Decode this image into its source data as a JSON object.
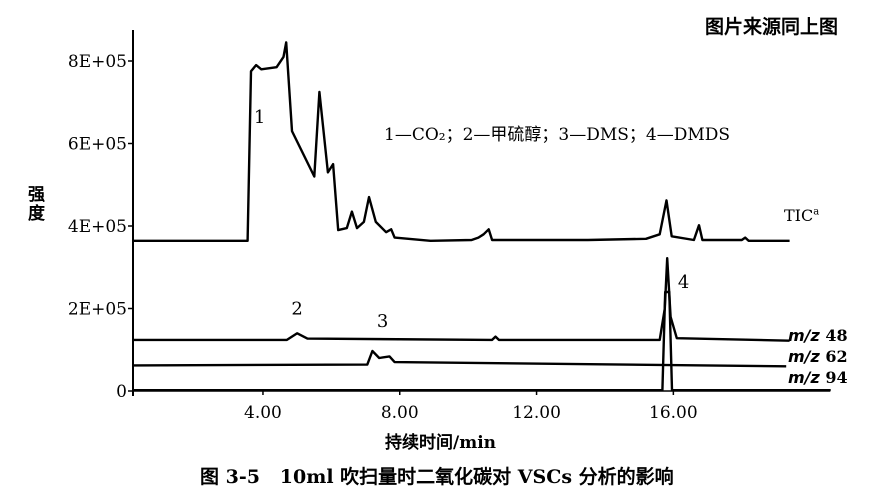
{
  "source_note": "图片来源同上图",
  "caption": "图 3-5   10ml 吹扫量时二氧化碳对 VSCs 分析的影响",
  "chart_data": {
    "type": "line",
    "title": "",
    "xlabel": "持续时间/min",
    "ylabel": "强度",
    "xlim": [
      0.2,
      20.6
    ],
    "ylim": [
      0,
      880000
    ],
    "x_ticks": [
      4,
      8,
      12,
      16
    ],
    "x_tick_labels": [
      "4.00",
      "8.00",
      "12.00",
      "16.00"
    ],
    "y_ticks": [
      0,
      200000,
      400000,
      600000,
      800000
    ],
    "y_tick_labels": [
      "0",
      "2E+05",
      "4E+05",
      "6E+05",
      "8E+05"
    ],
    "grid": false,
    "legend_text": "1—CO₂；2—甲硫醇；3—DMS；4—DMDS",
    "series": [
      {
        "name": "TIC",
        "superscript": "a",
        "points": [
          [
            0.2,
            364000
          ],
          [
            3.55,
            364000
          ],
          [
            3.65,
            775000
          ],
          [
            3.8,
            790000
          ],
          [
            3.95,
            780000
          ],
          [
            4.4,
            785000
          ],
          [
            4.6,
            810000
          ],
          [
            4.68,
            845000
          ],
          [
            4.85,
            630000
          ],
          [
            5.5,
            520000
          ],
          [
            5.65,
            725000
          ],
          [
            5.9,
            530000
          ],
          [
            6.05,
            550000
          ],
          [
            6.2,
            390000
          ],
          [
            6.45,
            395000
          ],
          [
            6.6,
            435000
          ],
          [
            6.75,
            395000
          ],
          [
            6.95,
            410000
          ],
          [
            7.1,
            470000
          ],
          [
            7.3,
            410000
          ],
          [
            7.6,
            385000
          ],
          [
            7.75,
            392000
          ],
          [
            7.85,
            372000
          ],
          [
            8.9,
            364000
          ],
          [
            10.1,
            366000
          ],
          [
            10.3,
            372000
          ],
          [
            10.45,
            380000
          ],
          [
            10.6,
            392000
          ],
          [
            10.7,
            366000
          ],
          [
            13.5,
            366000
          ],
          [
            15.2,
            369000
          ],
          [
            15.6,
            380000
          ],
          [
            15.8,
            462000
          ],
          [
            15.95,
            375000
          ],
          [
            16.6,
            366000
          ],
          [
            16.75,
            402000
          ],
          [
            16.85,
            366000
          ],
          [
            18.0,
            366000
          ],
          [
            18.1,
            372000
          ],
          [
            18.2,
            364000
          ],
          [
            19.4,
            364000
          ]
        ]
      },
      {
        "name": "m/z 48",
        "points": [
          [
            0.2,
            124000
          ],
          [
            4.7,
            124000
          ],
          [
            5.0,
            140000
          ],
          [
            5.3,
            127000
          ],
          [
            10.7,
            124000
          ],
          [
            10.8,
            132000
          ],
          [
            10.9,
            124000
          ],
          [
            15.6,
            124000
          ],
          [
            15.75,
            200000
          ],
          [
            15.82,
            322000
          ],
          [
            15.92,
            180000
          ],
          [
            16.1,
            128000
          ],
          [
            19.4,
            122000
          ]
        ]
      },
      {
        "name": "m/z 62",
        "points": [
          [
            0.2,
            62000
          ],
          [
            7.05,
            64000
          ],
          [
            7.2,
            97000
          ],
          [
            7.4,
            80000
          ],
          [
            7.7,
            84000
          ],
          [
            7.85,
            70000
          ],
          [
            19.3,
            60000
          ]
        ]
      },
      {
        "name": "m/z 94",
        "points": [
          [
            0.2,
            2000
          ],
          [
            15.68,
            2000
          ],
          [
            15.76,
            240000
          ],
          [
            15.88,
            240000
          ],
          [
            15.96,
            2000
          ],
          [
            20.6,
            2000
          ]
        ]
      }
    ],
    "peak_labels": [
      {
        "label": "1",
        "x": 3.9,
        "y": 650000
      },
      {
        "label": "2",
        "x": 5.0,
        "y": 185000
      },
      {
        "label": "3",
        "x": 7.5,
        "y": 155000
      },
      {
        "label": "4",
        "x": 16.3,
        "y": 250000
      }
    ],
    "trace_labels": {
      "tic": "TIC",
      "tic_sup": "a",
      "mz48": "48",
      "mz62": "62",
      "mz94": "94",
      "mz_prefix": "m/z"
    }
  }
}
